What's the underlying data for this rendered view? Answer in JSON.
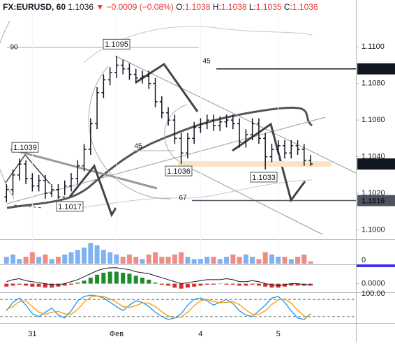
{
  "header": {
    "symbol": "FX:EURUSD, 60",
    "last": "1.1036",
    "arrow": "▼",
    "change": "−0.0009 (−0.08%)",
    "ohlc": [
      [
        "O:",
        "1.1038"
      ],
      [
        "H:",
        "1.1038"
      ],
      [
        "L:",
        "1.1035"
      ],
      [
        "C:",
        "1.1036"
      ]
    ]
  },
  "chart_data": [
    {
      "type": "ohlc",
      "color": "#131722",
      "open": [
        1.1018,
        1.1022,
        1.103,
        1.1036,
        1.1028,
        1.1024,
        1.1027,
        1.102,
        1.1022,
        1.1018,
        1.1024,
        1.1028,
        1.1035,
        1.1044,
        1.1058,
        1.1075,
        1.1082,
        1.1086,
        1.109,
        1.1088,
        1.1085,
        1.1083,
        1.1084,
        1.108,
        1.107,
        1.1064,
        1.106,
        1.105,
        1.1042,
        1.105,
        1.1056,
        1.1058,
        1.106,
        1.1057,
        1.1059,
        1.106,
        1.1058,
        1.1048,
        1.1052,
        1.1058,
        1.105,
        1.104,
        1.1044,
        1.1046,
        1.1042,
        1.1046,
        1.1044,
        1.1038
      ],
      "high": [
        1.1025,
        1.1033,
        1.1039,
        1.1038,
        1.1031,
        1.103,
        1.103,
        1.1025,
        1.1025,
        1.1027,
        1.1031,
        1.1038,
        1.1047,
        1.1061,
        1.1078,
        1.1085,
        1.1089,
        1.1095,
        1.1093,
        1.1091,
        1.1088,
        1.1087,
        1.1087,
        1.1083,
        1.1073,
        1.1067,
        1.1063,
        1.1053,
        1.1053,
        1.1059,
        1.1061,
        1.1063,
        1.1063,
        1.1062,
        1.1063,
        1.1063,
        1.1061,
        1.1055,
        1.1061,
        1.1061,
        1.1053,
        1.1047,
        1.1049,
        1.1049,
        1.1049,
        1.1049,
        1.1047,
        1.1041
      ],
      "low": [
        1.1015,
        1.1019,
        1.1027,
        1.1025,
        1.1021,
        1.1021,
        1.1017,
        1.1018,
        1.1017,
        1.1019,
        1.1021,
        1.1025,
        1.1032,
        1.1041,
        1.1055,
        1.1072,
        1.1079,
        1.1083,
        1.1085,
        1.1082,
        1.108,
        1.108,
        1.1077,
        1.1067,
        1.1061,
        1.1057,
        1.1047,
        1.1036,
        1.1039,
        1.1047,
        1.1053,
        1.1055,
        1.1054,
        1.1054,
        1.1056,
        1.1055,
        1.1045,
        1.1045,
        1.1049,
        1.1047,
        1.1033,
        1.1037,
        1.1041,
        1.1039,
        1.1039,
        1.1041,
        1.1035,
        1.1035
      ],
      "close": [
        1.1022,
        1.103,
        1.1036,
        1.1028,
        1.1024,
        1.1027,
        1.102,
        1.1022,
        1.1018,
        1.1024,
        1.1028,
        1.1035,
        1.1044,
        1.1058,
        1.1075,
        1.1082,
        1.1086,
        1.109,
        1.1088,
        1.1085,
        1.1083,
        1.1084,
        1.108,
        1.107,
        1.1064,
        1.106,
        1.105,
        1.1042,
        1.105,
        1.1056,
        1.1058,
        1.106,
        1.1057,
        1.1059,
        1.106,
        1.1058,
        1.1048,
        1.1052,
        1.1058,
        1.105,
        1.104,
        1.1044,
        1.1046,
        1.1042,
        1.1046,
        1.1044,
        1.1038,
        1.1036
      ],
      "ylim": [
        1.0996,
        1.1118
      ],
      "yticks": [
        {
          "value": 1.1,
          "label": "1.1000"
        },
        {
          "value": 1.102,
          "label": "1.1020"
        },
        {
          "value": 1.104,
          "label": "1.1040"
        },
        {
          "value": 1.106,
          "label": "1.1060"
        },
        {
          "value": 1.108,
          "label": "1.1080"
        },
        {
          "value": 1.11,
          "label": "1.1100"
        }
      ],
      "xlim": [
        -1,
        54
      ],
      "xticks": [
        {
          "value": 4,
          "label": "31"
        },
        {
          "value": 17,
          "label": "Фев"
        },
        {
          "value": 30,
          "label": "4"
        },
        {
          "value": 42,
          "label": "5"
        }
      ],
      "price_labels": [
        {
          "value": 1.1088,
          "color": "#131722"
        },
        {
          "value": 1.1036,
          "color": "#131722"
        },
        {
          "value": 1.1016,
          "color": "#50535e"
        }
      ],
      "callouts": [
        1.1095,
        1.1039,
        1.1036,
        1.1033,
        1.1017
      ],
      "fib_labels": [
        "90",
        "45",
        "45",
        "67"
      ]
    },
    {
      "type": "bar",
      "up_color": "#7fb2f0",
      "down_color": "#ef8c86",
      "values": [
        3,
        4,
        2,
        3,
        5,
        3,
        4,
        2,
        3,
        4,
        5,
        6,
        7,
        9,
        8,
        6,
        5,
        4,
        3,
        4,
        3,
        2,
        4,
        5,
        3,
        3,
        4,
        5,
        3,
        2,
        2,
        3,
        3,
        2,
        3,
        4,
        3,
        4,
        3,
        2,
        5,
        4,
        3,
        3,
        2,
        3,
        4,
        1
      ],
      "ylim": [
        0,
        10
      ],
      "yticks": [
        0
      ],
      "marker_color": "#3f32e8"
    },
    {
      "type": "macd",
      "up_color": "#1f8b2c",
      "down_color": "#d32f2f",
      "line_color": "#131722",
      "histogram": [
        -0.0003,
        -0.0002,
        -0.0001,
        -0.0002,
        -0.0003,
        -0.0003,
        -0.0004,
        -0.0004,
        -0.0003,
        -0.0002,
        -0.0001,
        0.0001,
        0.0003,
        0.0006,
        0.0009,
        0.0011,
        0.0012,
        0.0012,
        0.0011,
        0.001,
        0.0008,
        0.0006,
        0.0004,
        0.0001,
        -0.0001,
        -0.0002,
        -0.0004,
        -0.0005,
        -0.0004,
        -0.0003,
        -0.0002,
        -0.0001,
        -0.0001,
        0,
        -0.0001,
        -0.0001,
        -0.0002,
        -0.0002,
        -0.0001,
        -0.0002,
        -0.0003,
        -0.0004,
        -0.0004,
        -0.0003,
        -0.0002,
        -0.0002,
        -0.0002,
        -0.0002
      ],
      "line": [
        0.0002,
        0.0004,
        0.0005,
        0.0003,
        0.0002,
        0.0001,
        0,
        -0.0001,
        -0.0001,
        0,
        0.0002,
        0.0004,
        0.0007,
        0.001,
        0.0013,
        0.0015,
        0.0016,
        0.0016,
        0.0015,
        0.0014,
        0.0012,
        0.0011,
        0.001,
        0.0008,
        0.0006,
        0.0004,
        0.0002,
        0,
        0.0001,
        0.0002,
        0.0003,
        0.0004,
        0.0004,
        0.0004,
        0.0005,
        0.0004,
        0.0002,
        0.0002,
        0.0003,
        0.0002,
        0,
        -0.0001,
        -0.0002,
        -0.0001,
        0,
        0,
        -0.0001,
        -0.0001
      ],
      "ylim": [
        -0.0008,
        0.0018
      ],
      "yticks": [
        {
          "value": 0,
          "label": "0.0000"
        }
      ]
    },
    {
      "type": "line",
      "series": [
        {
          "color": "#2196f3",
          "values": [
            40,
            70,
            85,
            60,
            30,
            20,
            35,
            50,
            25,
            15,
            40,
            75,
            90,
            95,
            92,
            85,
            70,
            55,
            40,
            60,
            75,
            70,
            55,
            35,
            20,
            10,
            15,
            30,
            60,
            80,
            85,
            75,
            60,
            70,
            80,
            65,
            40,
            25,
            20,
            40,
            60,
            85,
            90,
            70,
            40,
            15,
            10,
            30
          ]
        },
        {
          "color": "#ff9800",
          "values": [
            45,
            55,
            72,
            75,
            55,
            35,
            28,
            35,
            38,
            30,
            28,
            45,
            70,
            88,
            92,
            90,
            82,
            70,
            55,
            52,
            58,
            68,
            67,
            55,
            37,
            22,
            15,
            18,
            35,
            58,
            75,
            80,
            73,
            68,
            70,
            72,
            62,
            43,
            28,
            28,
            40,
            62,
            78,
            82,
            67,
            42,
            22,
            18
          ]
        }
      ],
      "levels": [
        80,
        20
      ],
      "ylim": [
        0,
        100
      ],
      "yticks": [
        {
          "value": 100,
          "label": "100.00"
        }
      ]
    }
  ]
}
